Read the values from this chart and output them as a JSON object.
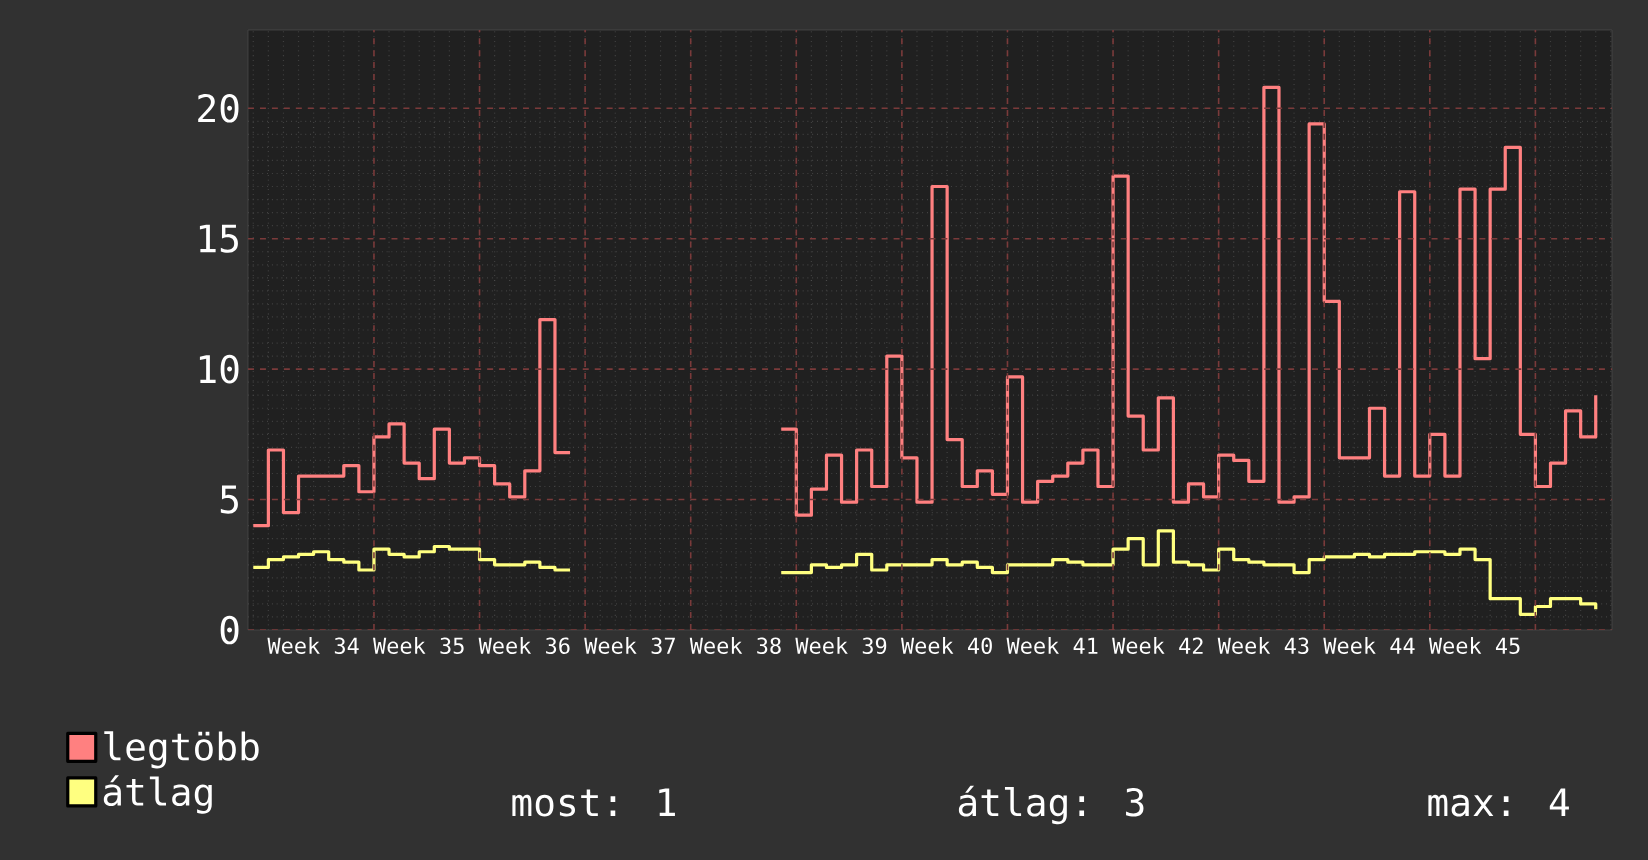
{
  "chart_data": {
    "type": "step",
    "categories": [
      null,
      null,
      null,
      null,
      "Week 34",
      null,
      null,
      null,
      null,
      null,
      null,
      "Week 35",
      null,
      null,
      null,
      null,
      null,
      null,
      "Week 36",
      null,
      null,
      null,
      null,
      null,
      null,
      "Week 37",
      null,
      null,
      null,
      null,
      null,
      null,
      "Week 38",
      null,
      null,
      null,
      null,
      null,
      null,
      "Week 39",
      null,
      null,
      null,
      null,
      null,
      null,
      "Week 40",
      null,
      null,
      null,
      null,
      null,
      null,
      "Week 41",
      null,
      null,
      null,
      null,
      null,
      null,
      "Week 42",
      null,
      null,
      null,
      null,
      null,
      null,
      "Week 43",
      null,
      null,
      null,
      null,
      null,
      null,
      "Week 44",
      null,
      null,
      null,
      null,
      null,
      null,
      "Week 45",
      null,
      null,
      null,
      null,
      null,
      null,
      null,
      null
    ],
    "series": [
      {
        "name": "legtöbb",
        "color": "#ff8080",
        "values": [
          4.0,
          6.9,
          4.5,
          5.9,
          5.9,
          5.9,
          6.3,
          5.3,
          7.4,
          7.9,
          6.4,
          5.8,
          7.7,
          6.4,
          6.6,
          6.3,
          5.6,
          5.1,
          6.1,
          11.9,
          6.8,
          null,
          null,
          null,
          null,
          null,
          null,
          null,
          null,
          null,
          null,
          null,
          null,
          null,
          null,
          7.7,
          4.4,
          5.4,
          6.7,
          4.9,
          6.9,
          5.5,
          10.5,
          6.6,
          4.9,
          17.0,
          7.3,
          5.5,
          6.1,
          5.2,
          9.7,
          4.9,
          5.7,
          5.9,
          6.4,
          6.9,
          5.5,
          17.4,
          8.2,
          6.9,
          8.9,
          4.9,
          5.6,
          5.1,
          6.7,
          6.5,
          5.7,
          20.8,
          4.9,
          5.1,
          19.4,
          12.6,
          6.6,
          6.6,
          8.5,
          5.9,
          16.8,
          5.9,
          7.5,
          5.9,
          16.9,
          10.4,
          16.9,
          18.5,
          7.5,
          5.5,
          6.4,
          8.4,
          7.4,
          9.0
        ]
      },
      {
        "name": "átlag",
        "color": "#ffff80",
        "values": [
          2.4,
          2.7,
          2.8,
          2.9,
          3.0,
          2.7,
          2.6,
          2.3,
          3.1,
          2.9,
          2.8,
          3.0,
          3.2,
          3.1,
          3.1,
          2.7,
          2.5,
          2.5,
          2.6,
          2.4,
          2.3,
          null,
          null,
          null,
          null,
          null,
          null,
          null,
          null,
          null,
          null,
          null,
          null,
          null,
          null,
          2.2,
          2.2,
          2.5,
          2.4,
          2.5,
          2.9,
          2.3,
          2.5,
          2.5,
          2.5,
          2.7,
          2.5,
          2.6,
          2.4,
          2.2,
          2.5,
          2.5,
          2.5,
          2.7,
          2.6,
          2.5,
          2.5,
          3.1,
          3.5,
          2.5,
          3.8,
          2.6,
          2.5,
          2.3,
          3.1,
          2.7,
          2.6,
          2.5,
          2.5,
          2.2,
          2.7,
          2.8,
          2.8,
          2.9,
          2.8,
          2.9,
          2.9,
          3.0,
          3.0,
          2.9,
          3.1,
          2.7,
          1.2,
          1.2,
          0.6,
          0.9,
          1.2,
          1.2,
          1.0,
          0.8
        ]
      }
    ],
    "ylim": [
      0,
      23
    ],
    "yticks": [
      0,
      5,
      10,
      15,
      20
    ],
    "grid": true,
    "legend": "bottom left",
    "annotations": [
      "most: 1",
      "átlag: 3",
      "max: 4"
    ]
  }
}
